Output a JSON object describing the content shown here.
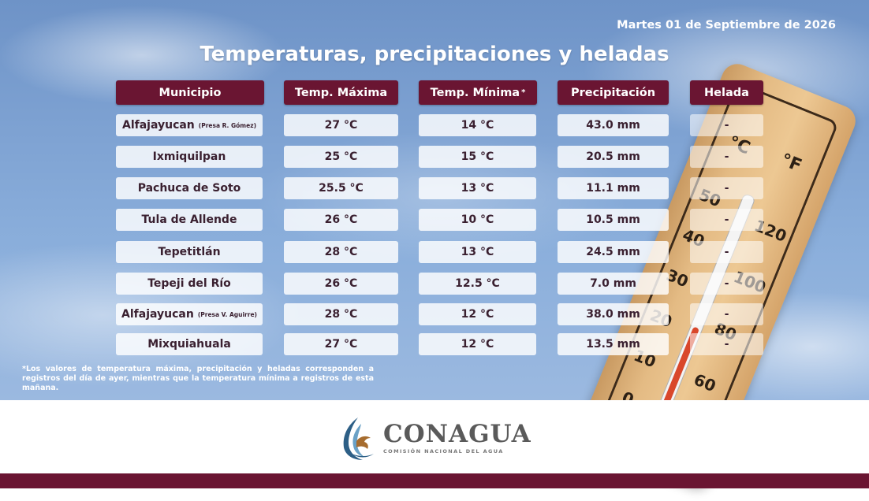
{
  "date": "Martes 01 de Septiembre de 2026",
  "title": "Temperaturas, precipitaciones y heladas",
  "headers": {
    "municipio": "Municipio",
    "tmax": "Temp. Máxima",
    "tmin": "Temp. Mínima",
    "tmin_mark": "*",
    "precip": "Precipitación",
    "helada": "Helada"
  },
  "rows": [
    {
      "municipio": "Alfajayucan",
      "sub": "(Presa R. Gómez)",
      "tmax": "27 °C",
      "tmin": "14 °C",
      "precip": "43.0 mm",
      "helada": "-"
    },
    {
      "municipio": "Ixmiquilpan",
      "sub": "",
      "tmax": "25 °C",
      "tmin": "15 °C",
      "precip": "20.5 mm",
      "helada": "-"
    },
    {
      "municipio": "Pachuca de Soto",
      "sub": "",
      "tmax": "25.5 °C",
      "tmin": "13 °C",
      "precip": "11.1 mm",
      "helada": "-"
    },
    {
      "municipio": "Tula de Allende",
      "sub": "",
      "tmax": "26 °C",
      "tmin": "10 °C",
      "precip": "10.5 mm",
      "helada": "-"
    },
    {
      "municipio": "Tepetitlán",
      "sub": "",
      "tmax": "28 °C",
      "tmin": "13 °C",
      "precip": "24.5 mm",
      "helada": "-"
    },
    {
      "municipio": "Tepeji del Río",
      "sub": "",
      "tmax": "26  °C",
      "tmin": "12.5 °C",
      "precip": "7.0 mm",
      "helada": "-"
    },
    {
      "municipio": "Alfajayucan",
      "sub": "(Presa V. Aguirre)",
      "tmax": "28 °C",
      "tmin": "12 °C",
      "precip": "38.0 mm",
      "helada": "-"
    },
    {
      "municipio": "Mixquiahuala",
      "sub": "",
      "tmax": "27 °C",
      "tmin": "12 °C",
      "precip": "13.5 mm",
      "helada": "-"
    }
  ],
  "footnote": "*Los valores de temperatura máxima, precipitación y heladas corresponden a registros del día de ayer, mientras que la temperatura mínima a registros de esta mañana.",
  "logo": {
    "name": "CONAGUA",
    "subtitle": "COMISIÓN NACIONAL DEL AGUA"
  },
  "thermometer_labels": [
    "°C",
    "°F",
    "50",
    "120",
    "40",
    "100",
    "30",
    "20",
    "80",
    "10",
    "60",
    "0"
  ],
  "colors": {
    "header_bg": "#6a1532",
    "bottom_bar": "#6a1532"
  }
}
